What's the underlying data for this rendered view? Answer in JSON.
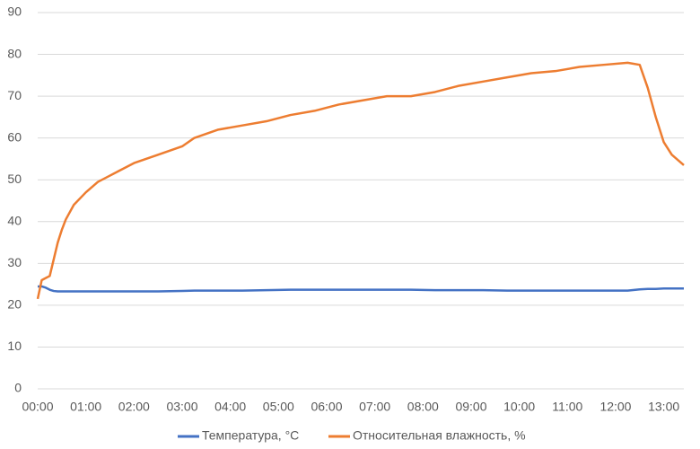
{
  "chart_data": {
    "type": "line",
    "x": [
      0,
      5,
      10,
      15,
      20,
      25,
      30,
      35,
      45,
      60,
      75,
      90,
      100,
      120,
      150,
      180,
      195,
      225,
      255,
      285,
      315,
      345,
      375,
      405,
      435,
      465,
      495,
      525,
      555,
      585,
      615,
      645,
      675,
      705,
      735,
      750,
      760,
      770,
      780,
      790,
      805
    ],
    "series": [
      {
        "name": "Температура, °C",
        "color": "#4472c4",
        "values": [
          24.5,
          24.5,
          24.2,
          23.7,
          23.4,
          23.3,
          23.3,
          23.3,
          23.3,
          23.3,
          23.3,
          23.3,
          23.3,
          23.3,
          23.3,
          23.4,
          23.5,
          23.5,
          23.5,
          23.6,
          23.7,
          23.7,
          23.7,
          23.7,
          23.7,
          23.7,
          23.6,
          23.6,
          23.6,
          23.5,
          23.5,
          23.5,
          23.5,
          23.5,
          23.5,
          23.8,
          23.9,
          23.9,
          24,
          24,
          24
        ]
      },
      {
        "name": "Относительная влажность, %",
        "color": "#ed7d31",
        "values": [
          21.5,
          26,
          26.5,
          27,
          31,
          35,
          38,
          40.5,
          44,
          47,
          49.5,
          51,
          52,
          54,
          56,
          58,
          60,
          62,
          63,
          64,
          65.5,
          66.5,
          68,
          69,
          70,
          70,
          71,
          72.5,
          73.5,
          74.5,
          75.5,
          76,
          77,
          77.5,
          78,
          77.5,
          72,
          65,
          59,
          56,
          53.5
        ]
      }
    ],
    "xlim": [
      0,
      805
    ],
    "xticks": [
      {
        "value": 0,
        "label": "00:00"
      },
      {
        "value": 60,
        "label": "01:00"
      },
      {
        "value": 120,
        "label": "02:00"
      },
      {
        "value": 180,
        "label": "03:00"
      },
      {
        "value": 240,
        "label": "04:00"
      },
      {
        "value": 300,
        "label": "05:00"
      },
      {
        "value": 360,
        "label": "06:00"
      },
      {
        "value": 420,
        "label": "07:00"
      },
      {
        "value": 480,
        "label": "08:00"
      },
      {
        "value": 540,
        "label": "09:00"
      },
      {
        "value": 600,
        "label": "10:00"
      },
      {
        "value": 660,
        "label": "11:00"
      },
      {
        "value": 720,
        "label": "12:00"
      },
      {
        "value": 780,
        "label": "13:00"
      }
    ],
    "ylim": [
      0,
      90
    ],
    "yticks": [
      0,
      10,
      20,
      30,
      40,
      50,
      60,
      70,
      80,
      90
    ],
    "grid": true,
    "legend": "bottom"
  }
}
